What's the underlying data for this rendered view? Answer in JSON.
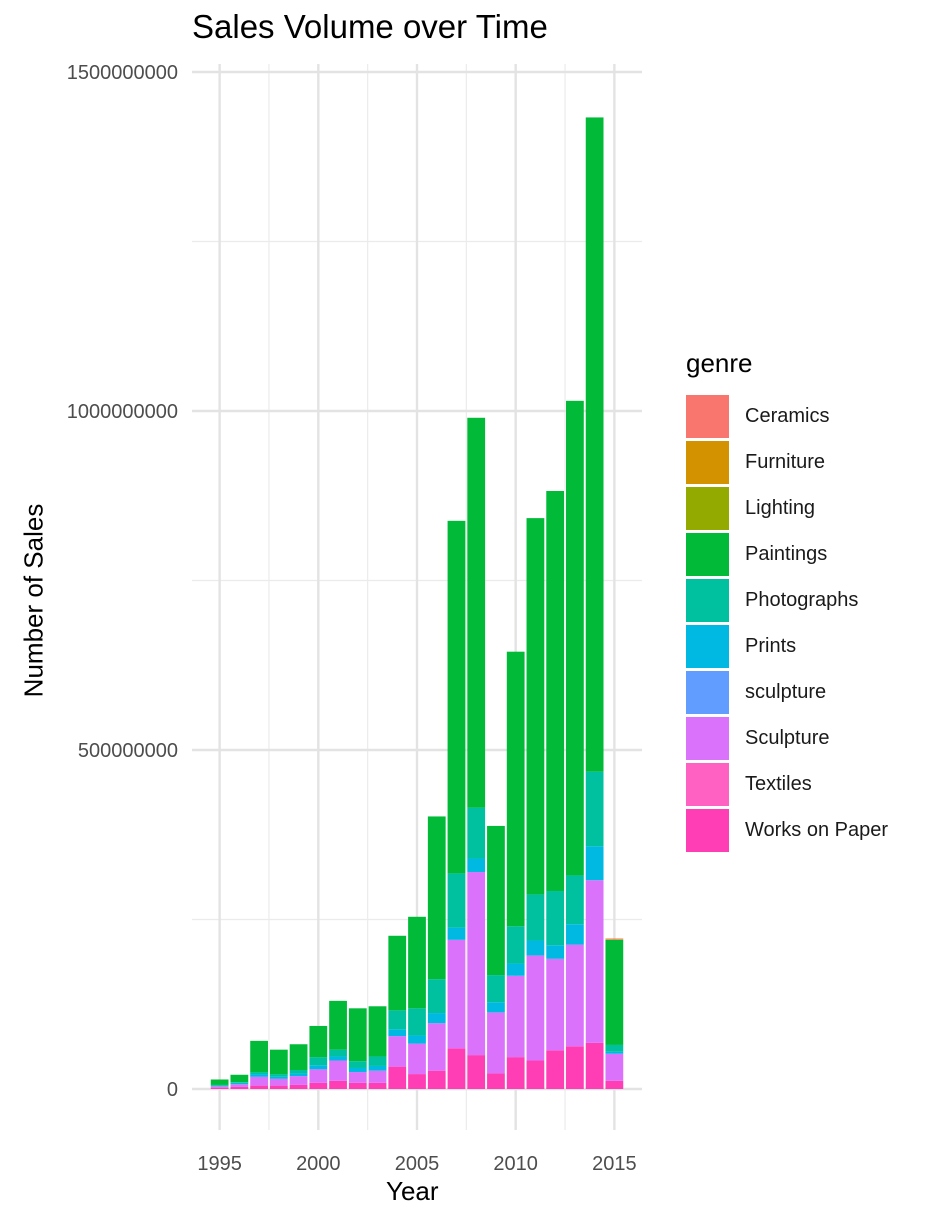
{
  "chart_data": {
    "type": "bar",
    "stacked": true,
    "title": "Sales Volume over Time",
    "xlabel": "Year",
    "ylabel": "Number of Sales",
    "x_ticks": [
      1995,
      2000,
      2005,
      2010,
      2015
    ],
    "y_ticks": [
      0,
      500000000,
      1000000000,
      1500000000
    ],
    "y_tick_labels": [
      "0",
      "500000000",
      "1000000000",
      "1500000000"
    ],
    "xlim": [
      1993.6,
      2016.4
    ],
    "ylim": [
      -50000000,
      1500000000
    ],
    "grid": true,
    "legend_title": "genre",
    "legend_position": "right",
    "categories": [
      1995,
      1996,
      1997,
      1998,
      1999,
      2000,
      2001,
      2002,
      2003,
      2004,
      2005,
      2006,
      2007,
      2008,
      2009,
      2010,
      2011,
      2012,
      2013,
      2014,
      2015
    ],
    "series": [
      {
        "name": "Ceramics",
        "color": "#F8766D",
        "values": [
          0,
          0,
          0,
          0,
          0,
          0,
          0,
          0,
          0,
          0,
          0,
          0,
          0,
          0,
          0,
          0,
          0,
          0,
          0,
          0,
          1000000
        ]
      },
      {
        "name": "Furniture",
        "color": "#D39200",
        "values": [
          0,
          0,
          0,
          0,
          0,
          0,
          0,
          0,
          0,
          0,
          0,
          0,
          0,
          0,
          0,
          0,
          0,
          0,
          0,
          0,
          1000000
        ]
      },
      {
        "name": "Lighting",
        "color": "#93AA00",
        "values": [
          0,
          0,
          0,
          0,
          0,
          0,
          0,
          0,
          0,
          0,
          0,
          0,
          0,
          0,
          0,
          0,
          0,
          0,
          0,
          0,
          0
        ]
      },
      {
        "name": "Paintings",
        "color": "#00BA38",
        "values": [
          8000000,
          11000000,
          46000000,
          36000000,
          38000000,
          46000000,
          72000000,
          78000000,
          74000000,
          110000000,
          135000000,
          240000000,
          520000000,
          575000000,
          220000000,
          405000000,
          555000000,
          590000000,
          700000000,
          965000000,
          155000000
        ]
      },
      {
        "name": "Photographs",
        "color": "#00C19F",
        "values": [
          1000000,
          1000000,
          3000000,
          4000000,
          5000000,
          12000000,
          10000000,
          10000000,
          14000000,
          28000000,
          40000000,
          50000000,
          80000000,
          75000000,
          40000000,
          55000000,
          68000000,
          80000000,
          72000000,
          110000000,
          10000000
        ]
      },
      {
        "name": "Prints",
        "color": "#00B9E3",
        "values": [
          1000000,
          2000000,
          4000000,
          3000000,
          4000000,
          6000000,
          6000000,
          6000000,
          7000000,
          10000000,
          12000000,
          15000000,
          18000000,
          20000000,
          15000000,
          18000000,
          22000000,
          20000000,
          30000000,
          50000000,
          3000000
        ]
      },
      {
        "name": "sculpture",
        "color": "#619CFF",
        "values": [
          0,
          0,
          0,
          0,
          0,
          0,
          0,
          0,
          0,
          0,
          0,
          0,
          0,
          0,
          0,
          0,
          0,
          0,
          0,
          0,
          0
        ]
      },
      {
        "name": "Sculpture",
        "color": "#DB72FB",
        "values": [
          2000000,
          4000000,
          13000000,
          10000000,
          13000000,
          20000000,
          30000000,
          16000000,
          18000000,
          45000000,
          45000000,
          70000000,
          160000000,
          270000000,
          90000000,
          120000000,
          155000000,
          135000000,
          150000000,
          240000000,
          40000000
        ]
      },
      {
        "name": "Textiles",
        "color": "#FF61C3",
        "values": [
          0,
          0,
          0,
          0,
          0,
          0,
          0,
          0,
          0,
          0,
          0,
          0,
          0,
          0,
          0,
          0,
          0,
          0,
          0,
          0,
          0
        ]
      },
      {
        "name": "Works on Paper",
        "color": "#FF3DB5",
        "values": [
          2000000,
          3000000,
          5000000,
          5000000,
          6000000,
          9000000,
          12000000,
          9000000,
          9000000,
          33000000,
          22000000,
          27000000,
          60000000,
          50000000,
          23000000,
          47000000,
          42000000,
          57000000,
          63000000,
          68000000,
          12000000
        ]
      }
    ]
  }
}
